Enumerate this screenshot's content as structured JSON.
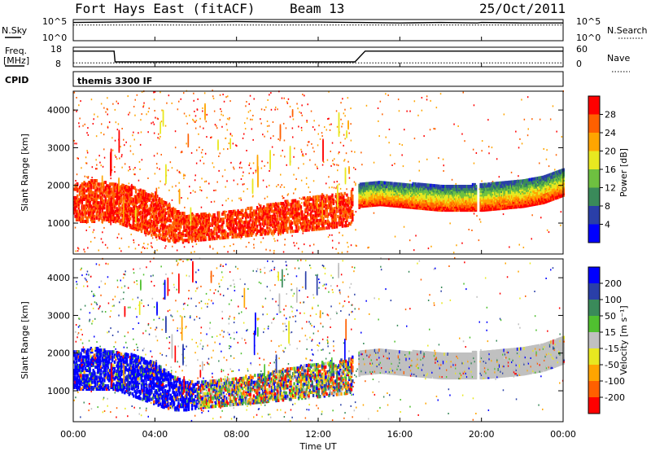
{
  "header": {
    "station": "Fort Hays East (fitACF)",
    "beam": "Beam 13",
    "date": "25/Oct/2011"
  },
  "strip_labels": {
    "nsky": "N.Sky",
    "nsearch": "N.Search",
    "freq": "Freq.",
    "freq_unit": "[MHz]",
    "nave": "Nave",
    "cpid": "CPID",
    "cpid_value": "themis 3300 IF"
  },
  "strip_ticks": {
    "noise_high": "10^5",
    "noise_low": "10^0",
    "freq_high": "18",
    "freq_low": "8",
    "nave_high": "60",
    "nave_low": "0"
  },
  "axes": {
    "ylabel": "Slant Range [km]",
    "xlabel": "Time UT",
    "yticks": [
      "1000",
      "2000",
      "3000",
      "4000"
    ],
    "xticks": [
      "00:00",
      "04:00",
      "08:00",
      "12:00",
      "16:00",
      "20:00",
      "00:00"
    ]
  },
  "power_scale": {
    "label": "Power [dB]",
    "ticks": [
      "4",
      "8",
      "12",
      "16",
      "20",
      "24",
      "28"
    ],
    "colors": [
      "#0000ff",
      "#2a3fa8",
      "#3a8a5a",
      "#6ec040",
      "#e8e820",
      "#ffa500",
      "#ff6000",
      "#ff0000"
    ]
  },
  "velocity_scale": {
    "label": "Velocity [m s⁻¹]",
    "ticks": [
      "200",
      "100",
      "50",
      "15",
      "-15",
      "-50",
      "-100",
      "-200"
    ],
    "colors": [
      "#0000ff",
      "#2a3fa8",
      "#3a8a5a",
      "#50c030",
      "#c0c0c0",
      "#e8e820",
      "#ffa500",
      "#ff6000",
      "#ff0000"
    ]
  },
  "chart_data": [
    {
      "type": "line",
      "series": [
        {
          "name": "N.Sky",
          "x": [
            0,
            2,
            4,
            6,
            8,
            10,
            12,
            13.8,
            14,
            16,
            18,
            19.8,
            20,
            22,
            24
          ],
          "values": [
            4.3,
            4.4,
            4.5,
            4.4,
            4.5,
            4.4,
            4.4,
            4.3,
            4.3,
            4.2,
            4.3,
            4.2,
            4.3,
            4.2,
            4.2
          ]
        },
        {
          "name": "N.Search",
          "x": [
            0,
            24
          ],
          "values": [
            3.7,
            3.7
          ]
        }
      ],
      "ylim": [
        0,
        5
      ]
    },
    {
      "type": "line",
      "series": [
        {
          "name": "Freq.",
          "x": [
            0,
            2,
            2.05,
            13.8,
            14.3,
            24
          ],
          "values": [
            16,
            16,
            10.5,
            10.5,
            16,
            16
          ]
        },
        {
          "name": "Nave",
          "x": [
            0,
            24
          ],
          "values": [
            10,
            10
          ]
        }
      ],
      "xlim": [
        0,
        24
      ],
      "ylim": [
        8,
        18
      ]
    },
    {
      "type": "heatmap",
      "quantity": "power",
      "xlim": [
        0,
        24
      ],
      "ylim": [
        180,
        4500
      ],
      "ranges_x": [
        0,
        1,
        2,
        3,
        3.5,
        4,
        4.5,
        5,
        5.5,
        6,
        8,
        10,
        12,
        13.5,
        14,
        15,
        16,
        17,
        18,
        19,
        20,
        21,
        22,
        23,
        24
      ],
      "band_low": [
        1000,
        1000,
        1000,
        800,
        700,
        600,
        500,
        450,
        450,
        500,
        600,
        700,
        800,
        900,
        1400,
        1450,
        1400,
        1350,
        1300,
        1300,
        1300,
        1350,
        1400,
        1500,
        1700
      ],
      "band_high": [
        2000,
        2100,
        2000,
        1900,
        1800,
        1700,
        1500,
        1300,
        1200,
        1200,
        1300,
        1500,
        1700,
        1800,
        2000,
        2050,
        2000,
        2000,
        1950,
        1950,
        2000,
        2050,
        2100,
        2200,
        2400
      ]
    },
    {
      "type": "heatmap",
      "quantity": "velocity",
      "xlim": [
        0,
        24
      ],
      "ylim": [
        180,
        4500
      ],
      "ranges_x": [
        0,
        1,
        2,
        3,
        3.5,
        4,
        4.5,
        5,
        5.5,
        6,
        8,
        10,
        12,
        13.5,
        14,
        15,
        16,
        17,
        18,
        19,
        20,
        21,
        22,
        23,
        24
      ],
      "band_low": [
        1000,
        1000,
        1000,
        800,
        700,
        600,
        500,
        450,
        450,
        500,
        600,
        700,
        800,
        900,
        1400,
        1450,
        1400,
        1350,
        1300,
        1300,
        1300,
        1350,
        1400,
        1500,
        1700
      ],
      "band_high": [
        2000,
        2100,
        2000,
        1900,
        1800,
        1700,
        1500,
        1300,
        1200,
        1200,
        1300,
        1500,
        1700,
        1800,
        2000,
        2050,
        2000,
        2000,
        1950,
        1950,
        2000,
        2050,
        2100,
        2200,
        2400
      ]
    }
  ]
}
